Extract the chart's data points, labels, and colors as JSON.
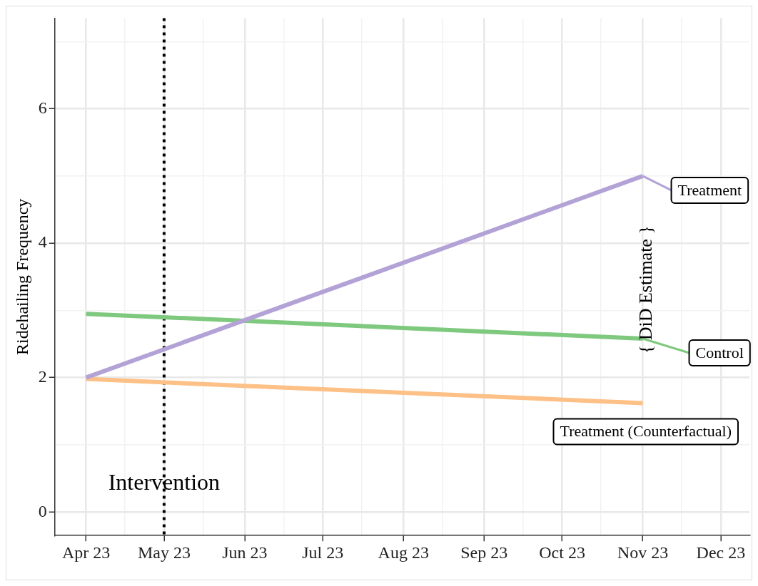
{
  "chart_data": {
    "type": "line",
    "ylabel": "Ridehailing Frequency",
    "x": [
      "2023-04",
      "2023-11"
    ],
    "series": [
      {
        "name": "Treatment",
        "color": "#b3a2d6",
        "values": [
          2.0,
          5.0
        ]
      },
      {
        "name": "Control",
        "color": "#7fc97f",
        "values": [
          2.95,
          2.58
        ]
      },
      {
        "name": "Treatment (Counterfactual)",
        "color": "#fdc086",
        "values": [
          1.98,
          1.62
        ]
      }
    ],
    "xlim": [
      "2023-03-20",
      "2023-12-12"
    ],
    "xticks": [
      {
        "value": "2023-04",
        "label": "Apr 23"
      },
      {
        "value": "2023-04-16",
        "label": null
      },
      {
        "value": "2023-05",
        "label": "May 23"
      },
      {
        "value": "2023-05-16",
        "label": null
      },
      {
        "value": "2023-06",
        "label": "Jun 23"
      },
      {
        "value": "2023-06-16",
        "label": null
      },
      {
        "value": "2023-07",
        "label": "Jul 23"
      },
      {
        "value": "2023-07-16",
        "label": null
      },
      {
        "value": "2023-08",
        "label": "Aug 23"
      },
      {
        "value": "2023-08-16",
        "label": null
      },
      {
        "value": "2023-09",
        "label": "Sep 23"
      },
      {
        "value": "2023-09-16",
        "label": null
      },
      {
        "value": "2023-10",
        "label": "Oct 23"
      },
      {
        "value": "2023-10-16",
        "label": null
      },
      {
        "value": "2023-11",
        "label": "Nov 23"
      },
      {
        "value": "2023-11-16",
        "label": null
      },
      {
        "value": "2023-12",
        "label": "Dec 23"
      }
    ],
    "ylim": [
      -0.35,
      7.35
    ],
    "yticks": [
      0,
      {
        "value": 1,
        "label": null
      },
      2,
      {
        "value": 3,
        "label": null
      },
      4,
      {
        "value": 5,
        "label": null
      },
      6,
      {
        "value": 7,
        "label": null
      }
    ],
    "grid": true,
    "legend": "right",
    "marker": "none",
    "line_style": "solid",
    "ref_lines": [
      {
        "axis": "x",
        "value": "2023-05",
        "label": "Intervention",
        "color": "#000000",
        "line_style": "dotted"
      }
    ],
    "annotations": [
      "{ DiD Estimate }"
    ]
  }
}
